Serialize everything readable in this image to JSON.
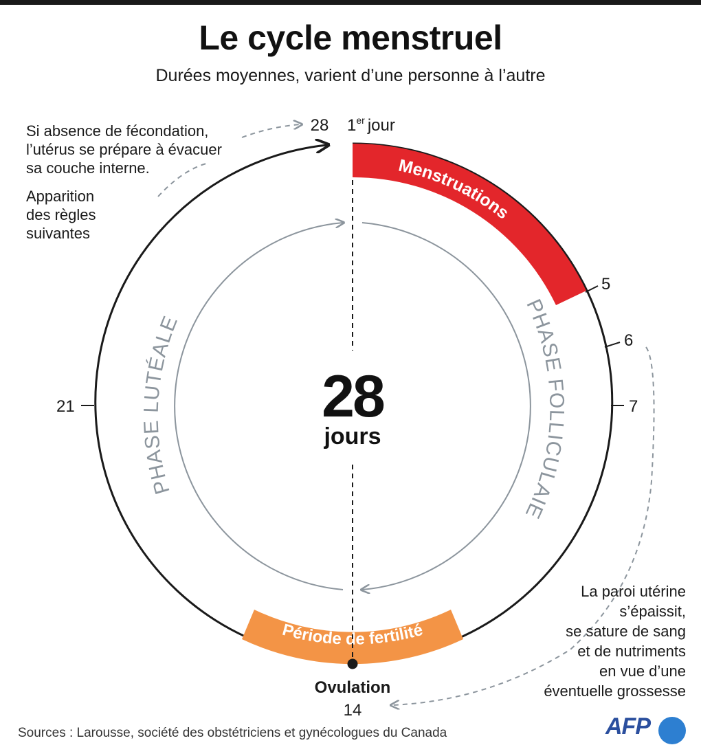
{
  "header": {
    "title": "Le cycle menstruel",
    "subtitle": "Durées moyennes, varient d’une personne à l’autre"
  },
  "cycle": {
    "total_days": "28",
    "total_unit": "jours",
    "first_day_number": "1",
    "first_day_sup": "er",
    "first_day_word": "jour",
    "day_labels": {
      "d28": "28",
      "d5": "5",
      "d6": "6",
      "d7": "7",
      "d14": "14",
      "d21": "21"
    },
    "menstruation_label": "Menstruations",
    "menstruation_days": [
      1,
      5
    ],
    "fertility_label": "Période de fertilité",
    "ovulation_label": "Ovulation",
    "follicular_phase_label": "PHASE FOLLICULAIE",
    "luteal_phase_label": "PHASE LUTÉALE"
  },
  "notes": {
    "left_top": [
      "Si absence de fécondation,",
      "l’utérus se prépare à évacuer",
      "sa couche interne."
    ],
    "left_bottom": [
      "Apparition",
      "des règles",
      "suivantes"
    ],
    "right": [
      "La paroi utérine",
      "s’épaissit,",
      "se sature de sang",
      "et de nutriments",
      "en vue d’une",
      "éventuelle grossesse"
    ]
  },
  "footer": {
    "sources": "Sources : Larousse, société des obstétriciens et gynécologues du Canada",
    "logo": "AFP"
  },
  "colors": {
    "menstruation": "#e3262b",
    "fertility": "#f39446",
    "phase_gray": "#8c959d",
    "ink": "#1a1a1a"
  }
}
